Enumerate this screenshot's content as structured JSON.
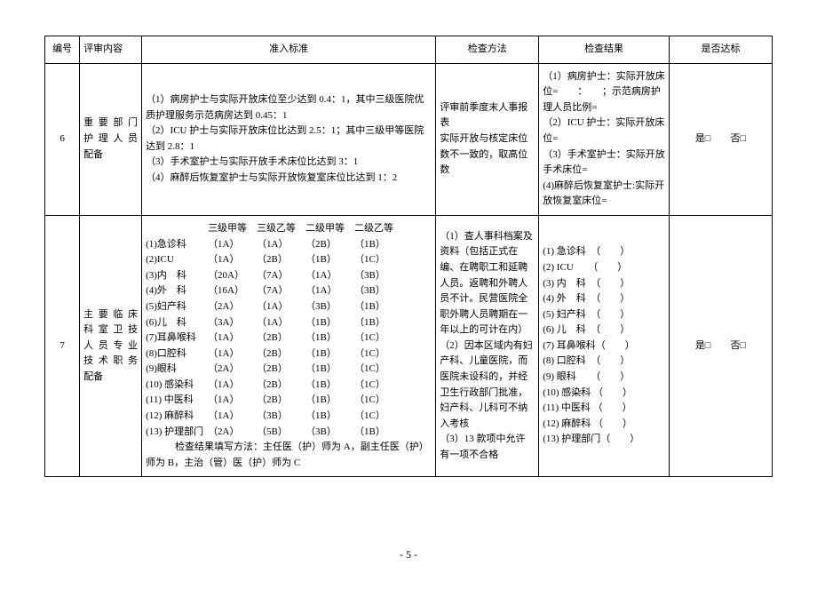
{
  "headers": {
    "num": "编号",
    "item": "评审内容",
    "std": "准入标准",
    "method": "检查方法",
    "result": "检查结果",
    "yn": "是否达标"
  },
  "row6": {
    "num": "6",
    "item": "重 要 部 门 护 理 人 员 配备",
    "std_l1": "（1）病房护士与实际开放床位至少达到 0.4：1，其中三级医院优质护理服务示范病房达到 0.45：1",
    "std_l2": "（2）ICU 护士与实际开放床位比达到 2.5：1；其中三级甲等医院达到 2.8：1",
    "std_l3": "（3）手术室护士与实际开放手术床位比达到 3：1",
    "std_l4": "（4）麻醉后恢复室护士与实际开放恢复室床位比达到 1：2",
    "method_l1": "评审前季度末人事报表",
    "method_l2": "实际开放与核定床位数不一致的，取高位数",
    "result_l1": "（1）病房护士：实际开放床位=　　：　　；示范病房护理人员比例=",
    "result_l2": "（2）ICU 护士：实际开放床位=",
    "result_l3": "（3）手术室护士：实际开放手术床位=",
    "result_l4": "(4)麻醉后恢复室护士:实际开放恢复室床位=",
    "yes": "是□",
    "no": "否□"
  },
  "row7": {
    "num": "7",
    "item": "主 要 临 床 科 室 卫 技 人 员 专 业 技 术 职 务 配备",
    "grade_h1": "三级甲等",
    "grade_h2": "三级乙等",
    "grade_h3": "二级甲等",
    "grade_h4": "二级乙等",
    "lines": [
      {
        "label": "(1)急诊科",
        "a": "（1A）",
        "b": "（1A）",
        "c": "（2B）",
        "d": "（1B）"
      },
      {
        "label": "(2)ICU",
        "a": "（1A）",
        "b": "（2B）",
        "c": "（1B）",
        "d": "（1C）"
      },
      {
        "label": "(3)内　科",
        "a": "（20A）",
        "b": "（7A）",
        "c": "（1A）",
        "d": "（3B）"
      },
      {
        "label": "(4)外　科",
        "a": "（16A）",
        "b": "（7A）",
        "c": "（1A）",
        "d": "（3B）"
      },
      {
        "label": "(5)妇产科",
        "a": "（2A）",
        "b": "（1A）",
        "c": "（3B）",
        "d": "（1B）"
      },
      {
        "label": "(6)儿　科",
        "a": "（3A）",
        "b": "（1A）",
        "c": "（1B）",
        "d": "（1B）"
      },
      {
        "label": "(7)耳鼻喉科",
        "a": "（1A）",
        "b": "（2B）",
        "c": "（1B）",
        "d": "（1C）"
      },
      {
        "label": "(8)口腔科",
        "a": "（1A）",
        "b": "（2B）",
        "c": "（1B）",
        "d": "（1C）"
      },
      {
        "label": "(9)眼科",
        "a": "（2A）",
        "b": "（2B）",
        "c": "（1B）",
        "d": "（1C）"
      },
      {
        "label": "(10) 感染科",
        "a": "（1A）",
        "b": "（2B）",
        "c": "（1B）",
        "d": "（1C）"
      },
      {
        "label": "(11) 中医科",
        "a": "（1A）",
        "b": "（2B）",
        "c": "（1B）",
        "d": "（1C）"
      },
      {
        "label": "(12) 麻醉科",
        "a": "（1A）",
        "b": "（3B）",
        "c": "（1B）",
        "d": "（1C）"
      },
      {
        "label": "(13) 护理部门",
        "a": "（2A）",
        "b": "（5B）",
        "c": "（3B）",
        "d": "（1B）"
      }
    ],
    "note": "　　　检查结果填写方法：主任医（护）师为 A，副主任医（护）师为 B，主治（管）医（护）师为 C",
    "method_l1": "（1）查人事科档案及资料（包括正式在编、在聘职工和延聘人员。返聘和外聘人员不计。民营医院全职外聘人员聘期在一年以上的可计在内）",
    "method_l2": "（2）因本区域内有妇产科、儿童医院，而医院未设科的，并经卫生行政部门批准，妇产科、儿科可不纳入考核",
    "method_l3": "（3）13 款项中允许有一项不合格",
    "results": [
      "(1) 急诊科　（　　）",
      "(2) ICU　　（　　）",
      "(3) 内　科　（　　）",
      "(4) 外　科　（　　）",
      "(5) 妇产科　（　　）",
      "(6) 儿　科　（　　）",
      "(7) 耳鼻喉科（　　）",
      "(8) 口腔科　（　　）",
      "(9) 眼科　　（　　）",
      "(10) 感染科 （　　）",
      "(11) 中医科 （　　）",
      "(12) 麻醉科 （　　）",
      "(13) 护理部门（　　）"
    ],
    "yes": "是□",
    "no": "否□"
  },
  "page": "- 5 -"
}
